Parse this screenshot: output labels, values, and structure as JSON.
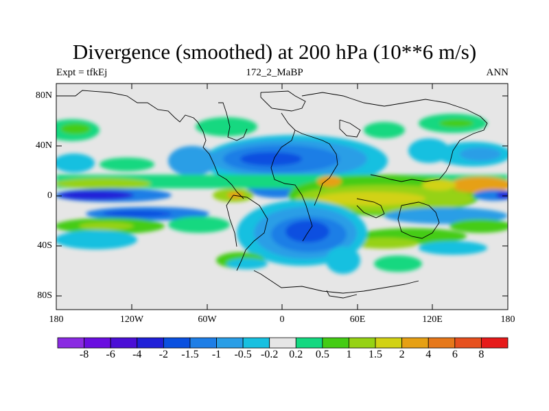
{
  "title": "Divergence (smoothed) at 200 hPa (10**6 m/s)",
  "subtitle_left": "Expt = tfkEj",
  "subtitle_center": "172_2_MaBP",
  "subtitle_right": "ANN",
  "lat_labels": [
    "80N",
    "40N",
    "0",
    "40S",
    "80S"
  ],
  "lon_labels": [
    "180",
    "120W",
    "60W",
    "0",
    "60E",
    "120E",
    "180"
  ],
  "colorbar": {
    "labels": [
      "-8",
      "-6",
      "-4",
      "-2",
      "-1.5",
      "-1",
      "-0.5",
      "-0.2",
      "0.2",
      "0.5",
      "1",
      "1.5",
      "2",
      "4",
      "6",
      "8"
    ],
    "colors": [
      "#8a2be2",
      "#6a0ee0",
      "#4b0fd6",
      "#2020d8",
      "#0a50e0",
      "#1e7ee6",
      "#2a9ee6",
      "#18c0e0",
      "#e6e6e6",
      "#14d880",
      "#44cc14",
      "#96d214",
      "#d2d214",
      "#e6a014",
      "#e6781a",
      "#e6501e",
      "#e61a1a"
    ]
  },
  "colors": {
    "background": "#e6e6e6",
    "coast": "#000000"
  }
}
